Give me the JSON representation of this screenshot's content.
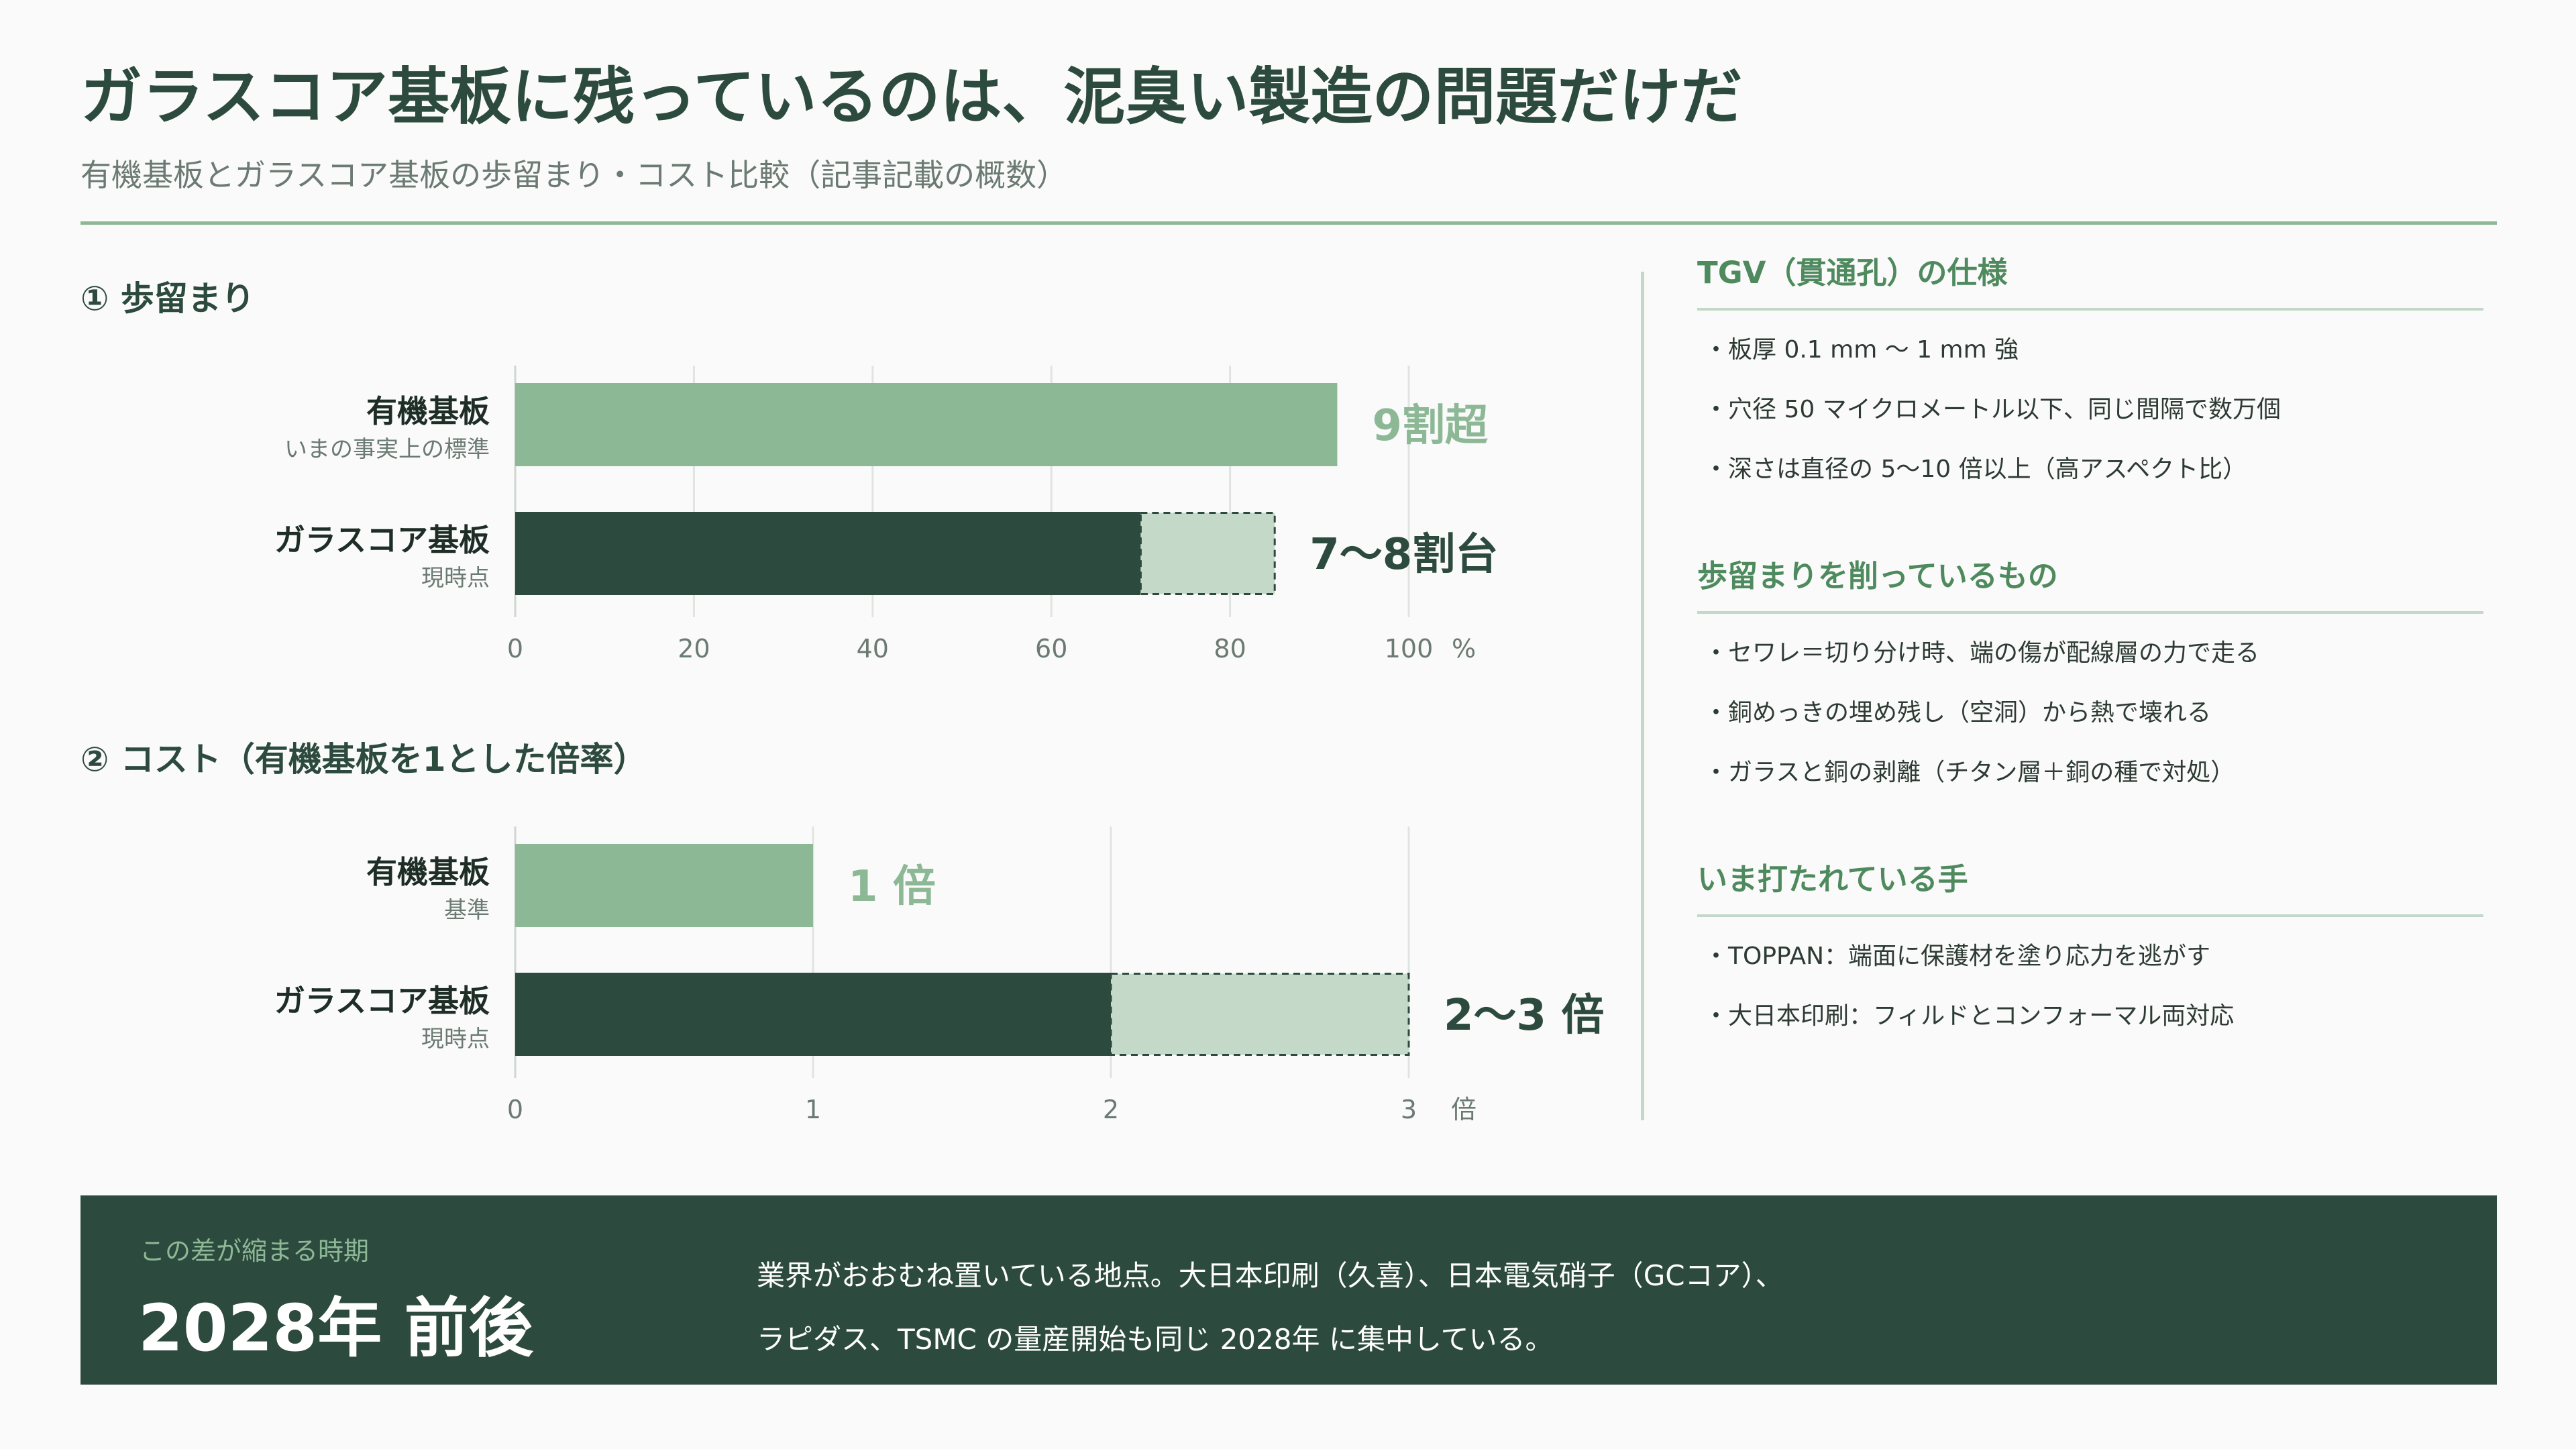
{
  "title": "ガラスコア基板に残っているのは、泥臭い製造の問題だけだ",
  "subtitle": "有機基板とガラスコア基板の歩留まり・コスト比較（記事記載の概数）",
  "colors": {
    "organic": "#8db896",
    "glass": "#2d4a3e",
    "range": "#c5d9c9",
    "accent": "#4e8a5e"
  },
  "chart_data": [
    {
      "type": "bar",
      "orientation": "horizontal",
      "title": "① 歩留まり",
      "categories": [
        "有機基板",
        "ガラスコア基板"
      ],
      "category_notes": [
        "いまの事実上の標準",
        "現時点"
      ],
      "series": [
        {
          "values": [
            92,
            70
          ]
        },
        {
          "values": [
            null,
            85
          ]
        }
      ],
      "data_labels": [
        "9割超",
        "7〜8割台"
      ],
      "xlim": [
        0,
        100
      ],
      "xticks": [
        0,
        20,
        40,
        60,
        80,
        100
      ],
      "x_unit": "%",
      "grid": true,
      "legend": "none"
    },
    {
      "type": "bar",
      "orientation": "horizontal",
      "title": "② コスト（有機基板を1とした倍率）",
      "categories": [
        "有機基板",
        "ガラスコア基板"
      ],
      "category_notes": [
        "基準",
        "現時点"
      ],
      "series": [
        {
          "values": [
            1,
            2
          ]
        },
        {
          "values": [
            null,
            3
          ]
        }
      ],
      "data_labels": [
        "1 倍",
        "2〜3 倍"
      ],
      "xlim": [
        0,
        3
      ],
      "xticks": [
        0,
        1,
        2,
        3
      ],
      "x_unit": "倍",
      "grid": true,
      "legend": "none"
    }
  ],
  "right_panel": {
    "sections": [
      {
        "title": "TGV（貫通孔）の仕様",
        "items": [
          "板厚 0.1 mm 〜 1 mm 強",
          "穴径 50 マイクロメートル以下、同じ間隔で数万個",
          "深さは直径の 5〜10 倍以上（高アスペクト比）"
        ]
      },
      {
        "title": "歩留まりを削っているもの",
        "items": [
          "セワレ＝切り分け時、端の傷が配線層の力で走る",
          "銅めっきの埋め残し（空洞）から熱で壊れる",
          "ガラスと銅の剥離（チタン層＋銅の種で対処）"
        ]
      },
      {
        "title": "いま打たれている手",
        "items": [
          "TOPPAN：端面に保護材を塗り応力を逃がす",
          "大日本印刷：フィルドとコンフォーマル両対応"
        ]
      }
    ]
  },
  "banner": {
    "label": "この差が縮まる時期",
    "value": "2028年 前後",
    "lines": [
      "業界がおおむね置いている地点。大日本印刷（久喜）、日本電気硝子（GCコア）、",
      "ラピダス、TSMC の量産開始も同じ 2028年 に集中している。"
    ]
  }
}
